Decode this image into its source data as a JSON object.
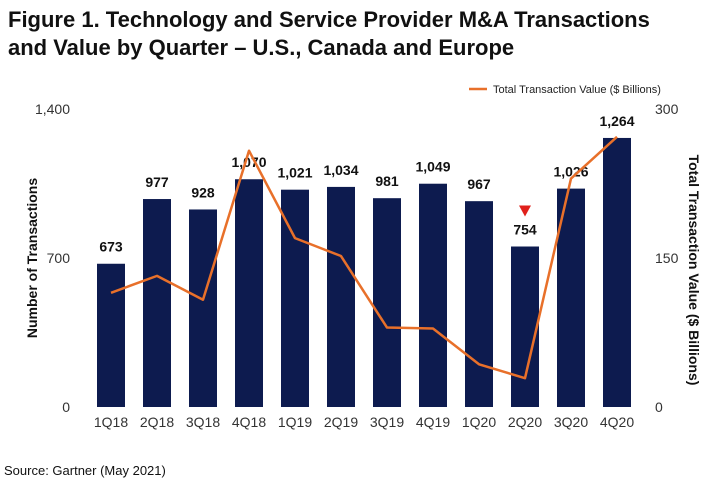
{
  "title": {
    "line1": "Figure 1. Technology and Service Provider M&A Transactions",
    "line2": "and Value by Quarter – U.S., Canada and Europe"
  },
  "source": "Source: Gartner (May 2021)",
  "chart_data": {
    "type": "bar+line",
    "categories": [
      "1Q18",
      "2Q18",
      "3Q18",
      "4Q18",
      "1Q19",
      "2Q19",
      "3Q19",
      "4Q19",
      "1Q20",
      "2Q20",
      "3Q20",
      "4Q20"
    ],
    "series": [
      {
        "name": "Number of Transactions",
        "type": "bar",
        "axis": "left",
        "color": "#0d1b4f",
        "values": [
          673,
          977,
          928,
          1070,
          1021,
          1034,
          981,
          1049,
          967,
          754,
          1026,
          1264
        ],
        "labels": [
          "673",
          "977",
          "928",
          "1,070",
          "1,021",
          "1,034",
          "981",
          "1,049",
          "967",
          "754",
          "1,026",
          "1,264"
        ]
      },
      {
        "name": "Total Transaction Value ($ Billions)",
        "type": "line",
        "axis": "right",
        "color": "#e8702a",
        "values": [
          115,
          132,
          108,
          258,
          170,
          152,
          80,
          79,
          43,
          29,
          230,
          272
        ]
      }
    ],
    "ylabel": "Number of Transactions",
    "y2label": "Total Transaction Value ($ Billions)",
    "ylim": [
      0,
      1400
    ],
    "y2lim": [
      0,
      300
    ],
    "yticks": [
      {
        "value": 0,
        "label": "0"
      },
      {
        "value": 700,
        "label": "700"
      },
      {
        "value": 1400,
        "label": "1,400"
      }
    ],
    "y2ticks": [
      {
        "value": 0,
        "label": "0"
      },
      {
        "value": 150,
        "label": "150"
      },
      {
        "value": 300,
        "label": "300"
      }
    ],
    "legend": "top-right",
    "legend_label": "Total Transaction Value ($ Billions)",
    "annotation": {
      "category": "2Q20",
      "marker": "down-triangle",
      "color": "#e0201b"
    }
  }
}
